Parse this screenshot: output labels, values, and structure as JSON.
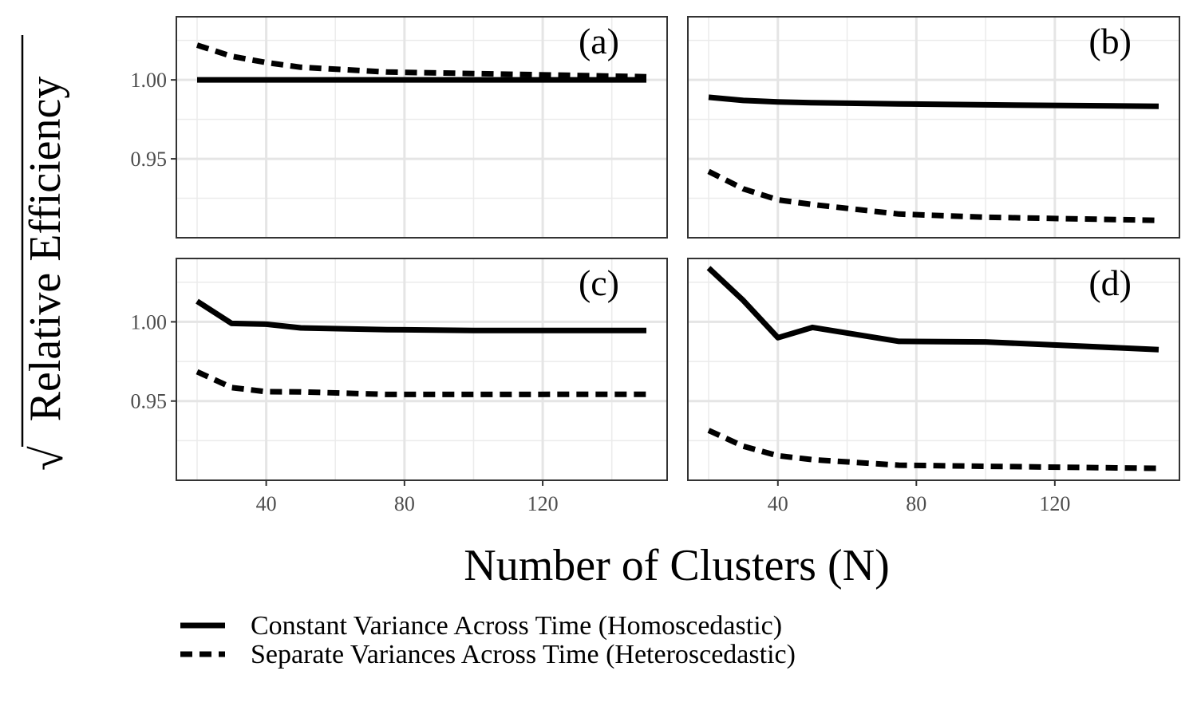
{
  "chart_data": {
    "type": "line",
    "xlabel": "Number of Clusters (N)",
    "ylabel": "Relative Efficiency",
    "ylabel_root": "√",
    "xlim": [
      14,
      156
    ],
    "ylim": [
      0.9,
      1.04
    ],
    "xticks": [
      40,
      80,
      120
    ],
    "yticks": [
      0.95,
      1.0
    ],
    "yticklabels": [
      "0.95",
      "1.00"
    ],
    "grid": true,
    "legend_position": "bottom",
    "legend": [
      {
        "label": "Constant Variance Across Time (Homoscedastic)",
        "dash": "solid"
      },
      {
        "label": "Separate Variances Across Time (Heteroscedastic)",
        "dash": "dashed"
      }
    ],
    "panels": [
      {
        "tag": "(a)",
        "series": [
          {
            "dash": "solid",
            "x": [
              20,
              30,
              40,
              50,
              75,
              100,
              150
            ],
            "y": [
              1.0,
              1.0,
              1.0,
              1.0,
              1.0,
              1.0,
              1.0
            ]
          },
          {
            "dash": "dashed",
            "x": [
              20,
              30,
              40,
              50,
              75,
              100,
              150
            ],
            "y": [
              1.022,
              1.015,
              1.011,
              1.008,
              1.005,
              1.004,
              1.002
            ]
          }
        ]
      },
      {
        "tag": "(b)",
        "series": [
          {
            "dash": "solid",
            "x": [
              20,
              30,
              40,
              50,
              75,
              100,
              150
            ],
            "y": [
              0.989,
              0.987,
              0.986,
              0.9855,
              0.9848,
              0.9842,
              0.9833
            ]
          },
          {
            "dash": "dashed",
            "x": [
              20,
              30,
              40,
              50,
              75,
              100,
              150
            ],
            "y": [
              0.942,
              0.931,
              0.924,
              0.921,
              0.915,
              0.913,
              0.911
            ]
          }
        ]
      },
      {
        "tag": "(c)",
        "series": [
          {
            "dash": "solid",
            "x": [
              20,
              30,
              40,
              50,
              75,
              100,
              150
            ],
            "y": [
              1.013,
              0.999,
              0.9985,
              0.9962,
              0.9951,
              0.9946,
              0.9945
            ]
          },
          {
            "dash": "dashed",
            "x": [
              20,
              30,
              40,
              50,
              75,
              100,
              150
            ],
            "y": [
              0.9685,
              0.9585,
              0.9559,
              0.9558,
              0.9542,
              0.9542,
              0.9543
            ]
          }
        ]
      },
      {
        "tag": "(d)",
        "series": [
          {
            "dash": "solid",
            "x": [
              20,
              30,
              40,
              50,
              75,
              100,
              150
            ],
            "y": [
              1.034,
              1.0135,
              0.99,
              0.9965,
              0.9877,
              0.9873,
              0.9825
            ]
          },
          {
            "dash": "dashed",
            "x": [
              20,
              30,
              40,
              50,
              75,
              100,
              150
            ],
            "y": [
              0.9315,
              0.9215,
              0.9155,
              0.913,
              0.9095,
              0.9088,
              0.9075
            ]
          }
        ]
      }
    ]
  }
}
